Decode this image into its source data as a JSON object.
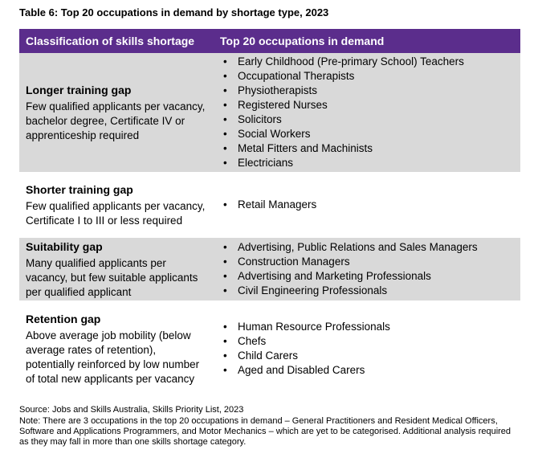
{
  "caption": "Table 6: Top 20 occupations in demand by shortage type, 2023",
  "header": {
    "col1": "Classification of skills shortage",
    "col2": "Top 20 occupations in demand"
  },
  "rows": [
    {
      "title": "Longer training gap",
      "description": "Few qualified applicants per vacancy, bachelor degree, Certificate IV or apprenticeship required",
      "occupations": [
        "Early Childhood (Pre-primary School) Teachers",
        "Occupational Therapists",
        "Physiotherapists",
        "Registered Nurses",
        "Solicitors",
        "Social Workers",
        "Metal Fitters and Machinists",
        "Electricians"
      ]
    },
    {
      "title": "Shorter training gap",
      "description": "Few qualified applicants per vacancy, Certificate I to III or less required",
      "occupations": [
        "Retail Managers"
      ]
    },
    {
      "title": "Suitability gap",
      "description": "Many qualified applicants per vacancy, but few suitable applicants per qualified applicant",
      "occupations": [
        "Advertising, Public Relations and Sales Managers",
        "Construction Managers",
        "Advertising and Marketing Professionals",
        "Civil Engineering Professionals"
      ]
    },
    {
      "title": "Retention gap",
      "description": "Above average job mobility (below average rates of retention), potentially reinforced by low number of total new applicants per vacancy",
      "occupations": [
        "Human Resource Professionals",
        "Chefs",
        "Child Carers",
        "Aged and Disabled Carers"
      ]
    }
  ],
  "source": "Source: Jobs and Skills Australia, Skills Priority List, 2023",
  "note": "Note: There are 3 occupations in the top 20 occupations in demand – General Practitioners and Resident Medical Officers, Software and Applications Programmers, and Motor Mechanics – which are yet to be categorised. Additional analysis required as they may fall in more than one skills shortage category.",
  "colors": {
    "header_bg": "#5b2d8c",
    "shaded_row_bg": "#d9d9d9"
  }
}
